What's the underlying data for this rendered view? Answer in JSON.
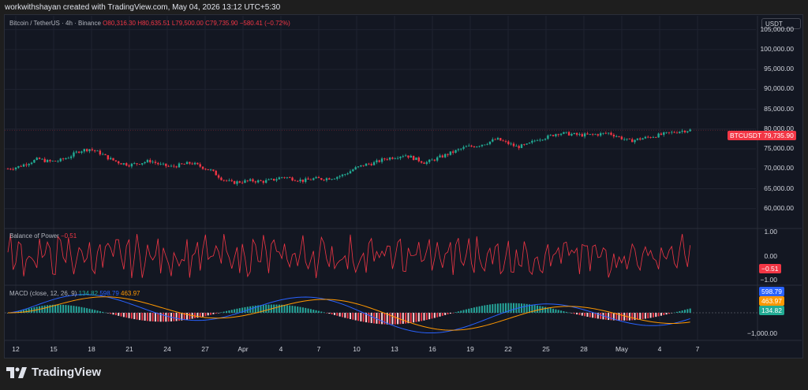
{
  "header": "workwithshayan created with TradingView.com, May 04, 2026 13:12 UTC+5:30",
  "main_legend": {
    "title": "Bitcoin / TetherUS · 4h · Binance",
    "open": "O80,316.30",
    "high": "H80,635.51",
    "low": "L79,500.00",
    "close": "C79,735.90",
    "change": "−580.41 (−0.72%)"
  },
  "currency_button": "USDT",
  "price_axis": [
    "105,000.00",
    "100,000.00",
    "95,000.00",
    "90,000.00",
    "85,000.00",
    "80,000.00",
    "75,000.00",
    "70,000.00",
    "65,000.00",
    "60,000.00"
  ],
  "price_tag": {
    "symbol": "BTCUSDT",
    "value": "79,735.90"
  },
  "bop": {
    "title": "Balance of Power",
    "value": "−0.51",
    "axis": [
      "1.00",
      "0.00",
      "−1.00"
    ],
    "tag": "−0.51"
  },
  "macd": {
    "title": "MACD (close, 12, 26, 9)",
    "hist": "134.82",
    "macd": "598.79",
    "signal": "463.97",
    "axis": [
      "−1,000.00"
    ],
    "tags": {
      "macd": "598.79",
      "signal": "463.97",
      "hist": "134.82"
    }
  },
  "x_axis": [
    "12",
    "15",
    "18",
    "21",
    "24",
    "27",
    "Apr",
    "4",
    "7",
    "10",
    "13",
    "16",
    "19",
    "22",
    "25",
    "28",
    "May",
    "4",
    "7"
  ],
  "footer": "TradingView",
  "colors": {
    "up": "#22ab94",
    "down": "#f23645",
    "macd": "#2962ff",
    "signal": "#ff9800"
  },
  "chart_data": {
    "type": "candlestick",
    "price_series": [
      70000,
      70500,
      71500,
      72500,
      71800,
      72000,
      73000,
      74500,
      75000,
      74000,
      72500,
      71500,
      71000,
      71500,
      72000,
      71000,
      70500,
      71000,
      71500,
      70500,
      69500,
      67500,
      66500,
      66800,
      67000,
      66800,
      67200,
      68000,
      67500,
      67000,
      67500,
      67500,
      67800,
      68500,
      70000,
      71000,
      71500,
      72500,
      73000,
      73500,
      72500,
      71500,
      72500,
      73500,
      74500,
      75500,
      75800,
      76500,
      77500,
      76500,
      75500,
      76000,
      77500,
      78000,
      79000,
      78800,
      78500,
      78500,
      78700,
      79000,
      78000,
      77000,
      77500,
      78000,
      78500,
      79000,
      79500,
      79735.9
    ],
    "ylim": [
      55000,
      107500
    ]
  }
}
